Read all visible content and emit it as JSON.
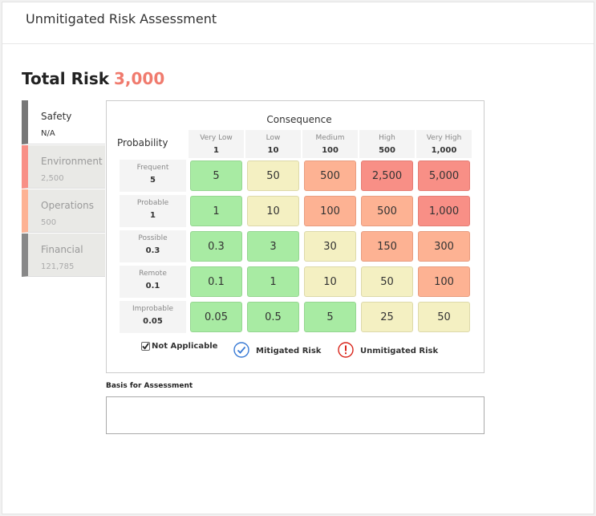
{
  "header": {
    "title": "Unmitigated Risk Assessment"
  },
  "total": {
    "label": "Total Risk",
    "value": "3,000"
  },
  "categories": [
    {
      "label": "Safety",
      "value": "N/A",
      "color": "#777777",
      "active": true
    },
    {
      "label": "Environment",
      "value": "2,500",
      "color": "#f88f86"
    },
    {
      "label": "Operations",
      "value": "500",
      "color": "#fdb293"
    },
    {
      "label": "Financial",
      "value": "121,785",
      "color": "#888888"
    }
  ],
  "matrix": {
    "consequence_title": "Consequence",
    "probability_title": "Probability",
    "columns": [
      {
        "label": "Very Low",
        "value": "1"
      },
      {
        "label": "Low",
        "value": "10"
      },
      {
        "label": "Medium",
        "value": "100"
      },
      {
        "label": "High",
        "value": "500"
      },
      {
        "label": "Very High",
        "value": "1,000"
      }
    ],
    "rows": [
      {
        "label": "Frequent",
        "value": "5",
        "cells": [
          "5",
          "50",
          "500",
          "2,500",
          "5,000"
        ]
      },
      {
        "label": "Probable",
        "value": "1",
        "cells": [
          "1",
          "10",
          "100",
          "500",
          "1,000"
        ]
      },
      {
        "label": "Possible",
        "value": "0.3",
        "cells": [
          "0.3",
          "3",
          "30",
          "150",
          "300"
        ]
      },
      {
        "label": "Remote",
        "value": "0.1",
        "cells": [
          "0.1",
          "1",
          "10",
          "50",
          "100"
        ]
      },
      {
        "label": "Improbable",
        "value": "0.05",
        "cells": [
          "0.05",
          "0.5",
          "5",
          "25",
          "50"
        ]
      }
    ],
    "colors": [
      [
        "green",
        "yellow",
        "orange",
        "red",
        "red"
      ],
      [
        "green",
        "yellow",
        "orange",
        "orange",
        "red"
      ],
      [
        "green",
        "green",
        "yellow",
        "orange",
        "orange"
      ],
      [
        "green",
        "green",
        "yellow",
        "yellow",
        "orange"
      ],
      [
        "green",
        "green",
        "green",
        "yellow",
        "yellow"
      ]
    ]
  },
  "legend": {
    "not_applicable": "Not Applicable",
    "mitigated": "Mitigated Risk",
    "unmitigated": "Unmitigated Risk",
    "not_applicable_checked": true,
    "mitigated_color": "#3a7bd5",
    "unmitigated_color": "#d9261c"
  },
  "basis": {
    "label": "Basis for Assessment",
    "value": ""
  }
}
